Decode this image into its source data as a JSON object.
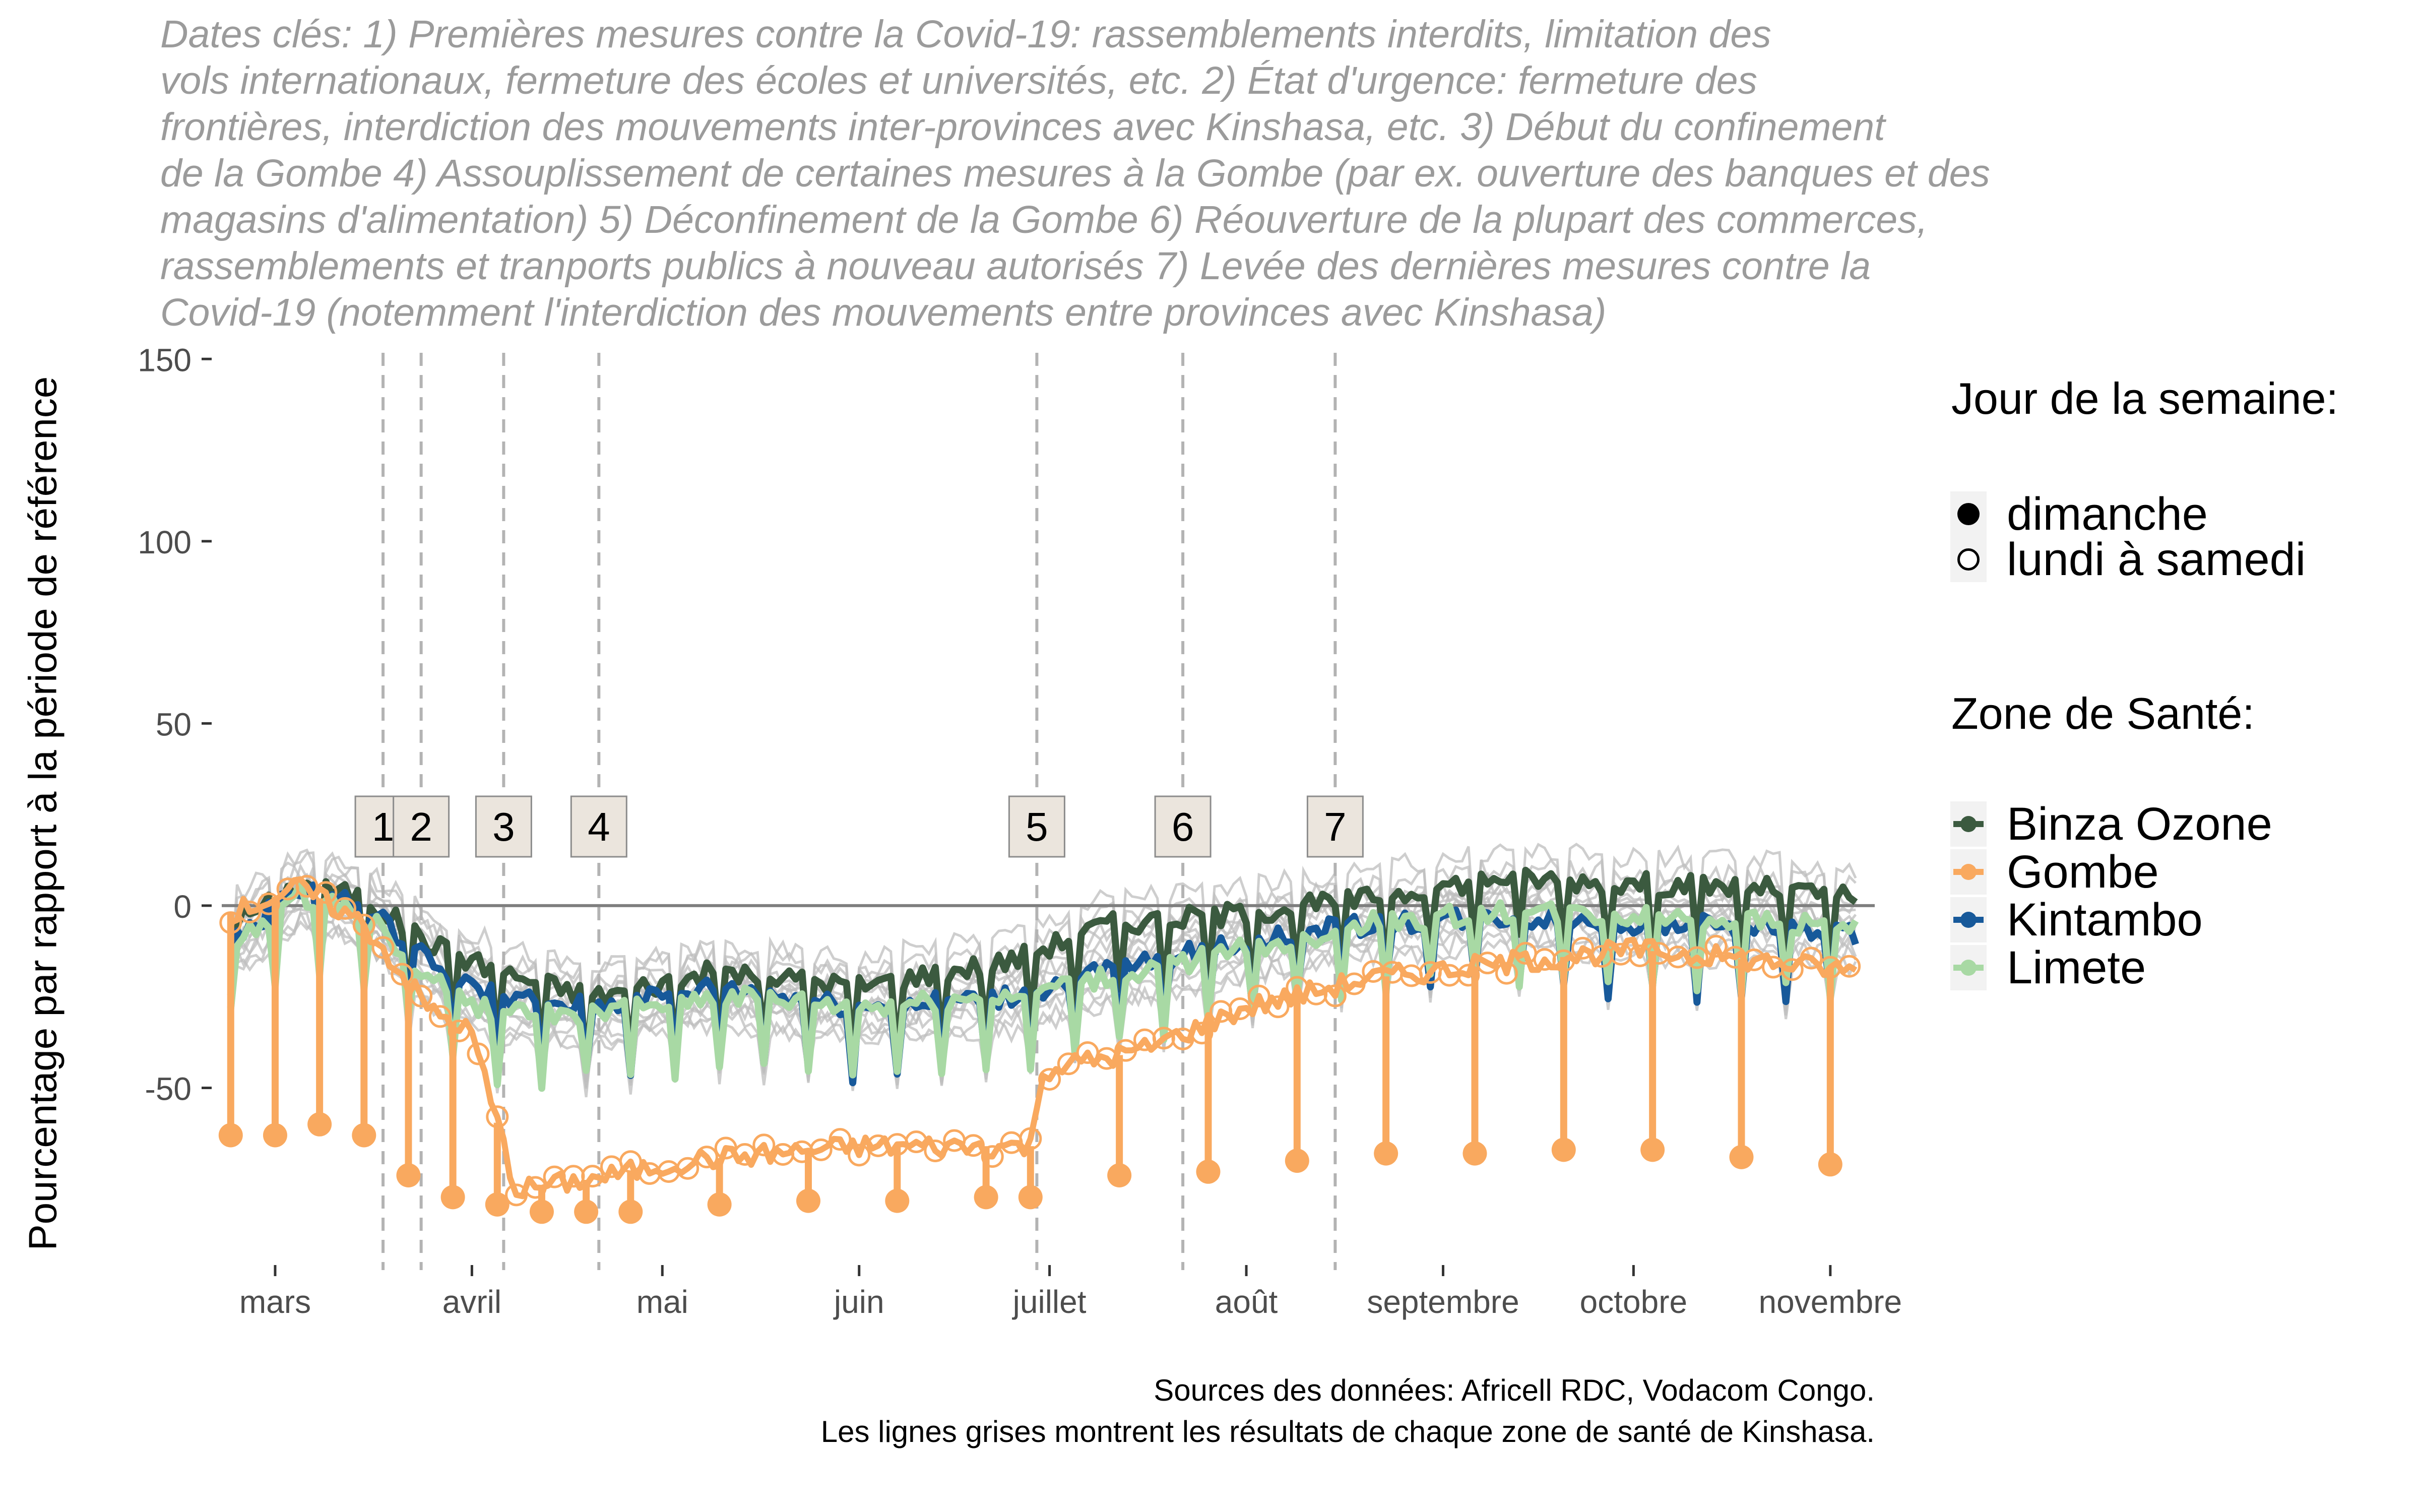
{
  "subtitle_lines": [
    "Dates clés: 1) Premières mesures contre la Covid-19: rassemblements interdits, limitation des",
    "vols internationaux, fermeture des écoles et universités, etc. 2) État d'urgence: fermeture des",
    "frontières, interdiction des mouvements inter-provinces avec Kinshasa, etc. 3) Début du confinement",
    "de la Gombe 4) Assouplissement de certaines mesures à la Gombe (par ex. ouverture des banques et des",
    "magasins d'alimentation) 5) Déconfinement de la Gombe 6) Réouverture de la plupart des commerces,",
    "rassemblements et tranports publics à nouveau autorisés 7) Levée des dernières mesures contre la",
    "Covid-19 (notemment l'interdiction des mouvements entre provinces avec Kinshasa)"
  ],
  "caption_lines": [
    "Sources des données: Africell RDC, Vodacom Congo.",
    "Les lignes grises montrent les résultats de chaque zone de santé de Kinshasa."
  ],
  "legend": {
    "shape_title": "Jour de la semaine:",
    "shape_items": [
      {
        "label": "dimanche",
        "filled": true
      },
      {
        "label": "lundi à samedi",
        "filled": false
      }
    ],
    "zone_title": "Zone de Santé:",
    "zone_items": [
      {
        "label": "Binza Ozone",
        "color": "#3b5a3f"
      },
      {
        "label": "Gombe",
        "color": "#f9a95f"
      },
      {
        "label": "Kintambo",
        "color": "#17599a"
      },
      {
        "label": "Limete",
        "color": "#a8d9a4"
      }
    ]
  },
  "chart_data": {
    "type": "line",
    "ylabel": "Pourcentage par rapport à la période de référence",
    "xlabel": "",
    "x_range": [
      "2020-02-20",
      "2020-11-08"
    ],
    "ylim": [
      -100,
      160
    ],
    "yticks": [
      150,
      100,
      50,
      0,
      -50
    ],
    "xticks": [
      {
        "label": "mars",
        "date": "2020-03-01"
      },
      {
        "label": "avril",
        "date": "2020-04-01"
      },
      {
        "label": "mai",
        "date": "2020-05-01"
      },
      {
        "label": "juin",
        "date": "2020-06-01"
      },
      {
        "label": "juillet",
        "date": "2020-07-01"
      },
      {
        "label": "août",
        "date": "2020-08-01"
      },
      {
        "label": "septembre",
        "date": "2020-09-01"
      },
      {
        "label": "octobre",
        "date": "2020-10-01"
      },
      {
        "label": "novembre",
        "date": "2020-11-01"
      }
    ],
    "reference_line": 0,
    "grid": false,
    "key_dates": [
      {
        "label": "1",
        "date": "2020-03-18"
      },
      {
        "label": "2",
        "date": "2020-03-24"
      },
      {
        "label": "3",
        "date": "2020-04-06"
      },
      {
        "label": "4",
        "date": "2020-04-21"
      },
      {
        "label": "5",
        "date": "2020-06-29"
      },
      {
        "label": "6",
        "date": "2020-07-22"
      },
      {
        "label": "7",
        "date": "2020-08-15"
      }
    ],
    "series": [
      {
        "name": "Binza Ozone",
        "color": "#3b5a3f",
        "points": [
          [
            "2020-02-23",
            -5
          ],
          [
            "2020-03-05",
            6
          ],
          [
            "2020-03-15",
            2
          ],
          [
            "2020-03-25",
            -10
          ],
          [
            "2020-04-05",
            -18
          ],
          [
            "2020-04-20",
            -25
          ],
          [
            "2020-05-10",
            -18
          ],
          [
            "2020-06-01",
            -22
          ],
          [
            "2020-06-25",
            -15
          ],
          [
            "2020-07-10",
            -5
          ],
          [
            "2020-08-01",
            -2
          ],
          [
            "2020-08-20",
            2
          ],
          [
            "2020-09-10",
            8
          ],
          [
            "2020-10-01",
            6
          ],
          [
            "2020-10-20",
            5
          ],
          [
            "2020-11-05",
            2
          ]
        ]
      },
      {
        "name": "Kintambo",
        "color": "#17599a",
        "points": [
          [
            "2020-02-23",
            -10
          ],
          [
            "2020-03-05",
            5
          ],
          [
            "2020-03-15",
            0
          ],
          [
            "2020-03-25",
            -15
          ],
          [
            "2020-04-05",
            -25
          ],
          [
            "2020-04-20",
            -28
          ],
          [
            "2020-05-10",
            -22
          ],
          [
            "2020-06-01",
            -28
          ],
          [
            "2020-06-25",
            -25
          ],
          [
            "2020-07-10",
            -18
          ],
          [
            "2020-08-01",
            -10
          ],
          [
            "2020-08-20",
            -5
          ],
          [
            "2020-09-10",
            -3
          ],
          [
            "2020-10-01",
            -5
          ],
          [
            "2020-10-20",
            -6
          ],
          [
            "2020-11-05",
            -8
          ]
        ]
      },
      {
        "name": "Limete",
        "color": "#a8d9a4",
        "points": [
          [
            "2020-02-23",
            -12
          ],
          [
            "2020-03-05",
            3
          ],
          [
            "2020-03-15",
            -2
          ],
          [
            "2020-03-25",
            -20
          ],
          [
            "2020-04-05",
            -30
          ],
          [
            "2020-04-20",
            -30
          ],
          [
            "2020-05-10",
            -25
          ],
          [
            "2020-06-01",
            -28
          ],
          [
            "2020-06-25",
            -25
          ],
          [
            "2020-07-10",
            -20
          ],
          [
            "2020-08-01",
            -12
          ],
          [
            "2020-08-20",
            -5
          ],
          [
            "2020-09-10",
            -2
          ],
          [
            "2020-10-01",
            -3
          ],
          [
            "2020-10-20",
            -4
          ],
          [
            "2020-11-05",
            -6
          ]
        ]
      },
      {
        "name": "Gombe",
        "color": "#f9a95f",
        "points": [
          [
            "2020-02-23",
            -2
          ],
          [
            "2020-03-05",
            5
          ],
          [
            "2020-03-15",
            -5
          ],
          [
            "2020-03-25",
            -28
          ],
          [
            "2020-04-01",
            -35
          ],
          [
            "2020-04-08",
            -78
          ],
          [
            "2020-04-20",
            -75
          ],
          [
            "2020-05-05",
            -70
          ],
          [
            "2020-06-01",
            -66
          ],
          [
            "2020-06-28",
            -66
          ],
          [
            "2020-06-30",
            -45
          ],
          [
            "2020-07-15",
            -40
          ],
          [
            "2020-08-01",
            -28
          ],
          [
            "2020-08-20",
            -20
          ],
          [
            "2020-09-10",
            -16
          ],
          [
            "2020-10-01",
            -12
          ],
          [
            "2020-10-20",
            -15
          ],
          [
            "2020-11-05",
            -18
          ]
        ]
      },
      {
        "name": "Gombe (dimanche)",
        "color": "#f9a95f",
        "points": [
          [
            "2020-02-23",
            -63
          ],
          [
            "2020-03-01",
            -63
          ],
          [
            "2020-03-08",
            -60
          ],
          [
            "2020-03-15",
            -63
          ],
          [
            "2020-03-22",
            -74
          ],
          [
            "2020-03-29",
            -80
          ],
          [
            "2020-04-05",
            -82
          ],
          [
            "2020-04-12",
            -84
          ],
          [
            "2020-04-19",
            -84
          ],
          [
            "2020-04-26",
            -84
          ],
          [
            "2020-05-10",
            -82
          ],
          [
            "2020-05-24",
            -81
          ],
          [
            "2020-06-07",
            -81
          ],
          [
            "2020-06-21",
            -80
          ],
          [
            "2020-06-28",
            -80
          ],
          [
            "2020-07-12",
            -74
          ],
          [
            "2020-07-26",
            -73
          ],
          [
            "2020-08-09",
            -70
          ],
          [
            "2020-08-23",
            -68
          ],
          [
            "2020-09-06",
            -68
          ],
          [
            "2020-09-20",
            -67
          ],
          [
            "2020-10-04",
            -67
          ],
          [
            "2020-10-18",
            -69
          ],
          [
            "2020-11-01",
            -71
          ]
        ]
      }
    ]
  }
}
